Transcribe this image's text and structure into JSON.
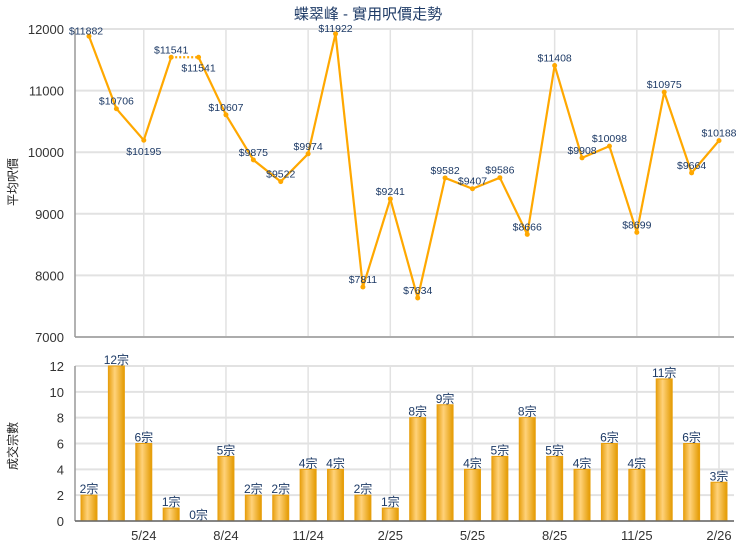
{
  "chart_data": [
    {
      "type": "line",
      "title": "蝶翠峰 - 實用呎價走勢",
      "ylabel": "平均呎價",
      "ylim": [
        7000,
        12000
      ],
      "yticks": [
        7000,
        8000,
        9000,
        10000,
        11000,
        12000
      ],
      "x": [
        "3/24",
        "4/24",
        "5/24",
        "6/24",
        "7/24",
        "8/24",
        "9/24",
        "10/24",
        "11/24",
        "12/24",
        "1/25",
        "2/25",
        "3/25",
        "4/25",
        "5/25",
        "6/25",
        "7/25",
        "8/25",
        "9/25",
        "10/25",
        "11/25",
        "12/25",
        "1/26",
        "2/26"
      ],
      "values": [
        11882,
        10706,
        10195,
        11541,
        11541,
        10607,
        9875,
        9522,
        9974,
        11922,
        7811,
        9241,
        7634,
        9582,
        9407,
        9586,
        8666,
        11408,
        9908,
        10098,
        8699,
        10975,
        9664,
        10188
      ],
      "data_labels": [
        "$11882",
        "$10706",
        "$10195",
        "$11541",
        "$11541",
        "$10607",
        "$9875",
        "$9522",
        "$9974",
        "$11922",
        "$7811",
        "$9241",
        "$7634",
        "$9582",
        "$9407",
        "$9586",
        "$8666",
        "$11408",
        "$9908",
        "$10098",
        "$8699",
        "$10975",
        "$9664",
        "$10188"
      ],
      "line_color": "#FFA800",
      "grid": true
    },
    {
      "type": "bar",
      "ylabel": "成交宗數",
      "ylim": [
        0,
        12
      ],
      "yticks": [
        0,
        2,
        4,
        6,
        8,
        10,
        12
      ],
      "x": [
        "3/24",
        "4/24",
        "5/24",
        "6/24",
        "7/24",
        "8/24",
        "9/24",
        "10/24",
        "11/24",
        "12/24",
        "1/25",
        "2/25",
        "3/25",
        "4/25",
        "5/25",
        "6/25",
        "7/25",
        "8/25",
        "9/25",
        "10/25",
        "11/25",
        "12/25",
        "1/26",
        "2/26"
      ],
      "values": [
        2,
        12,
        6,
        1,
        0,
        5,
        2,
        2,
        4,
        4,
        2,
        1,
        8,
        9,
        4,
        5,
        8,
        5,
        4,
        6,
        4,
        11,
        6,
        3
      ],
      "data_labels": [
        "2宗",
        "12宗",
        "6宗",
        "1宗",
        "0宗",
        "5宗",
        "2宗",
        "2宗",
        "4宗",
        "4宗",
        "2宗",
        "1宗",
        "8宗",
        "9宗",
        "4宗",
        "5宗",
        "8宗",
        "5宗",
        "4宗",
        "6宗",
        "4宗",
        "11宗",
        "6宗",
        "3宗"
      ],
      "xtick_labels": [
        "5/24",
        "8/24",
        "11/24",
        "2/25",
        "5/25",
        "8/25",
        "11/25",
        "2/26"
      ],
      "bar_color": "#F5B52E",
      "grid": true
    }
  ]
}
